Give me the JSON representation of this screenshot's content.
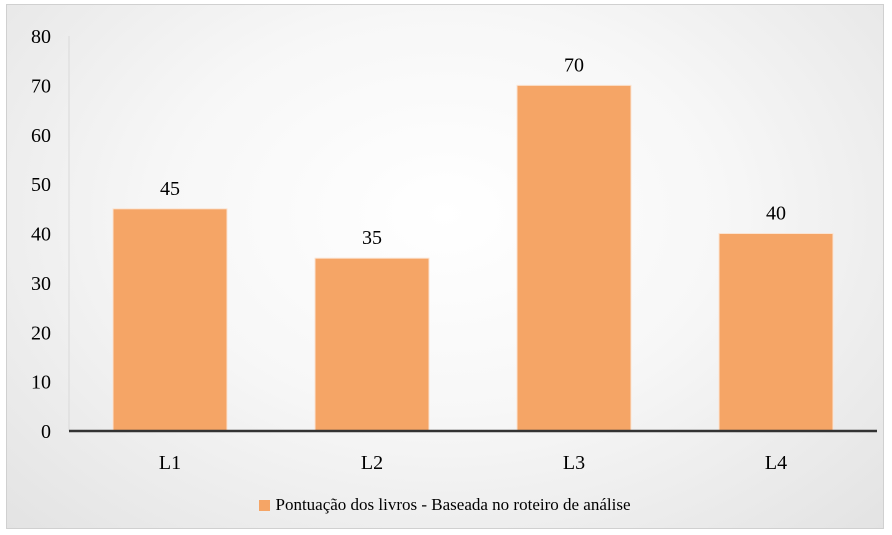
{
  "chart_data": {
    "type": "bar",
    "categories": [
      "L1",
      "L2",
      "L3",
      "L4"
    ],
    "series": [
      {
        "name": "Pontuação dos livros - Baseada no roteiro de análise",
        "values": [
          45,
          35,
          70,
          40
        ]
      }
    ],
    "data_labels": [
      "45",
      "35",
      "70",
      "40"
    ],
    "y_ticks": [
      "0",
      "10",
      "20",
      "30",
      "40",
      "50",
      "60",
      "70",
      "80"
    ],
    "ylim": [
      0,
      80
    ],
    "title": "",
    "xlabel": "",
    "ylabel": "",
    "grid": false,
    "legend_position": "bottom",
    "colors": {
      "bar": "#f5a566",
      "axis": "#333333"
    }
  }
}
